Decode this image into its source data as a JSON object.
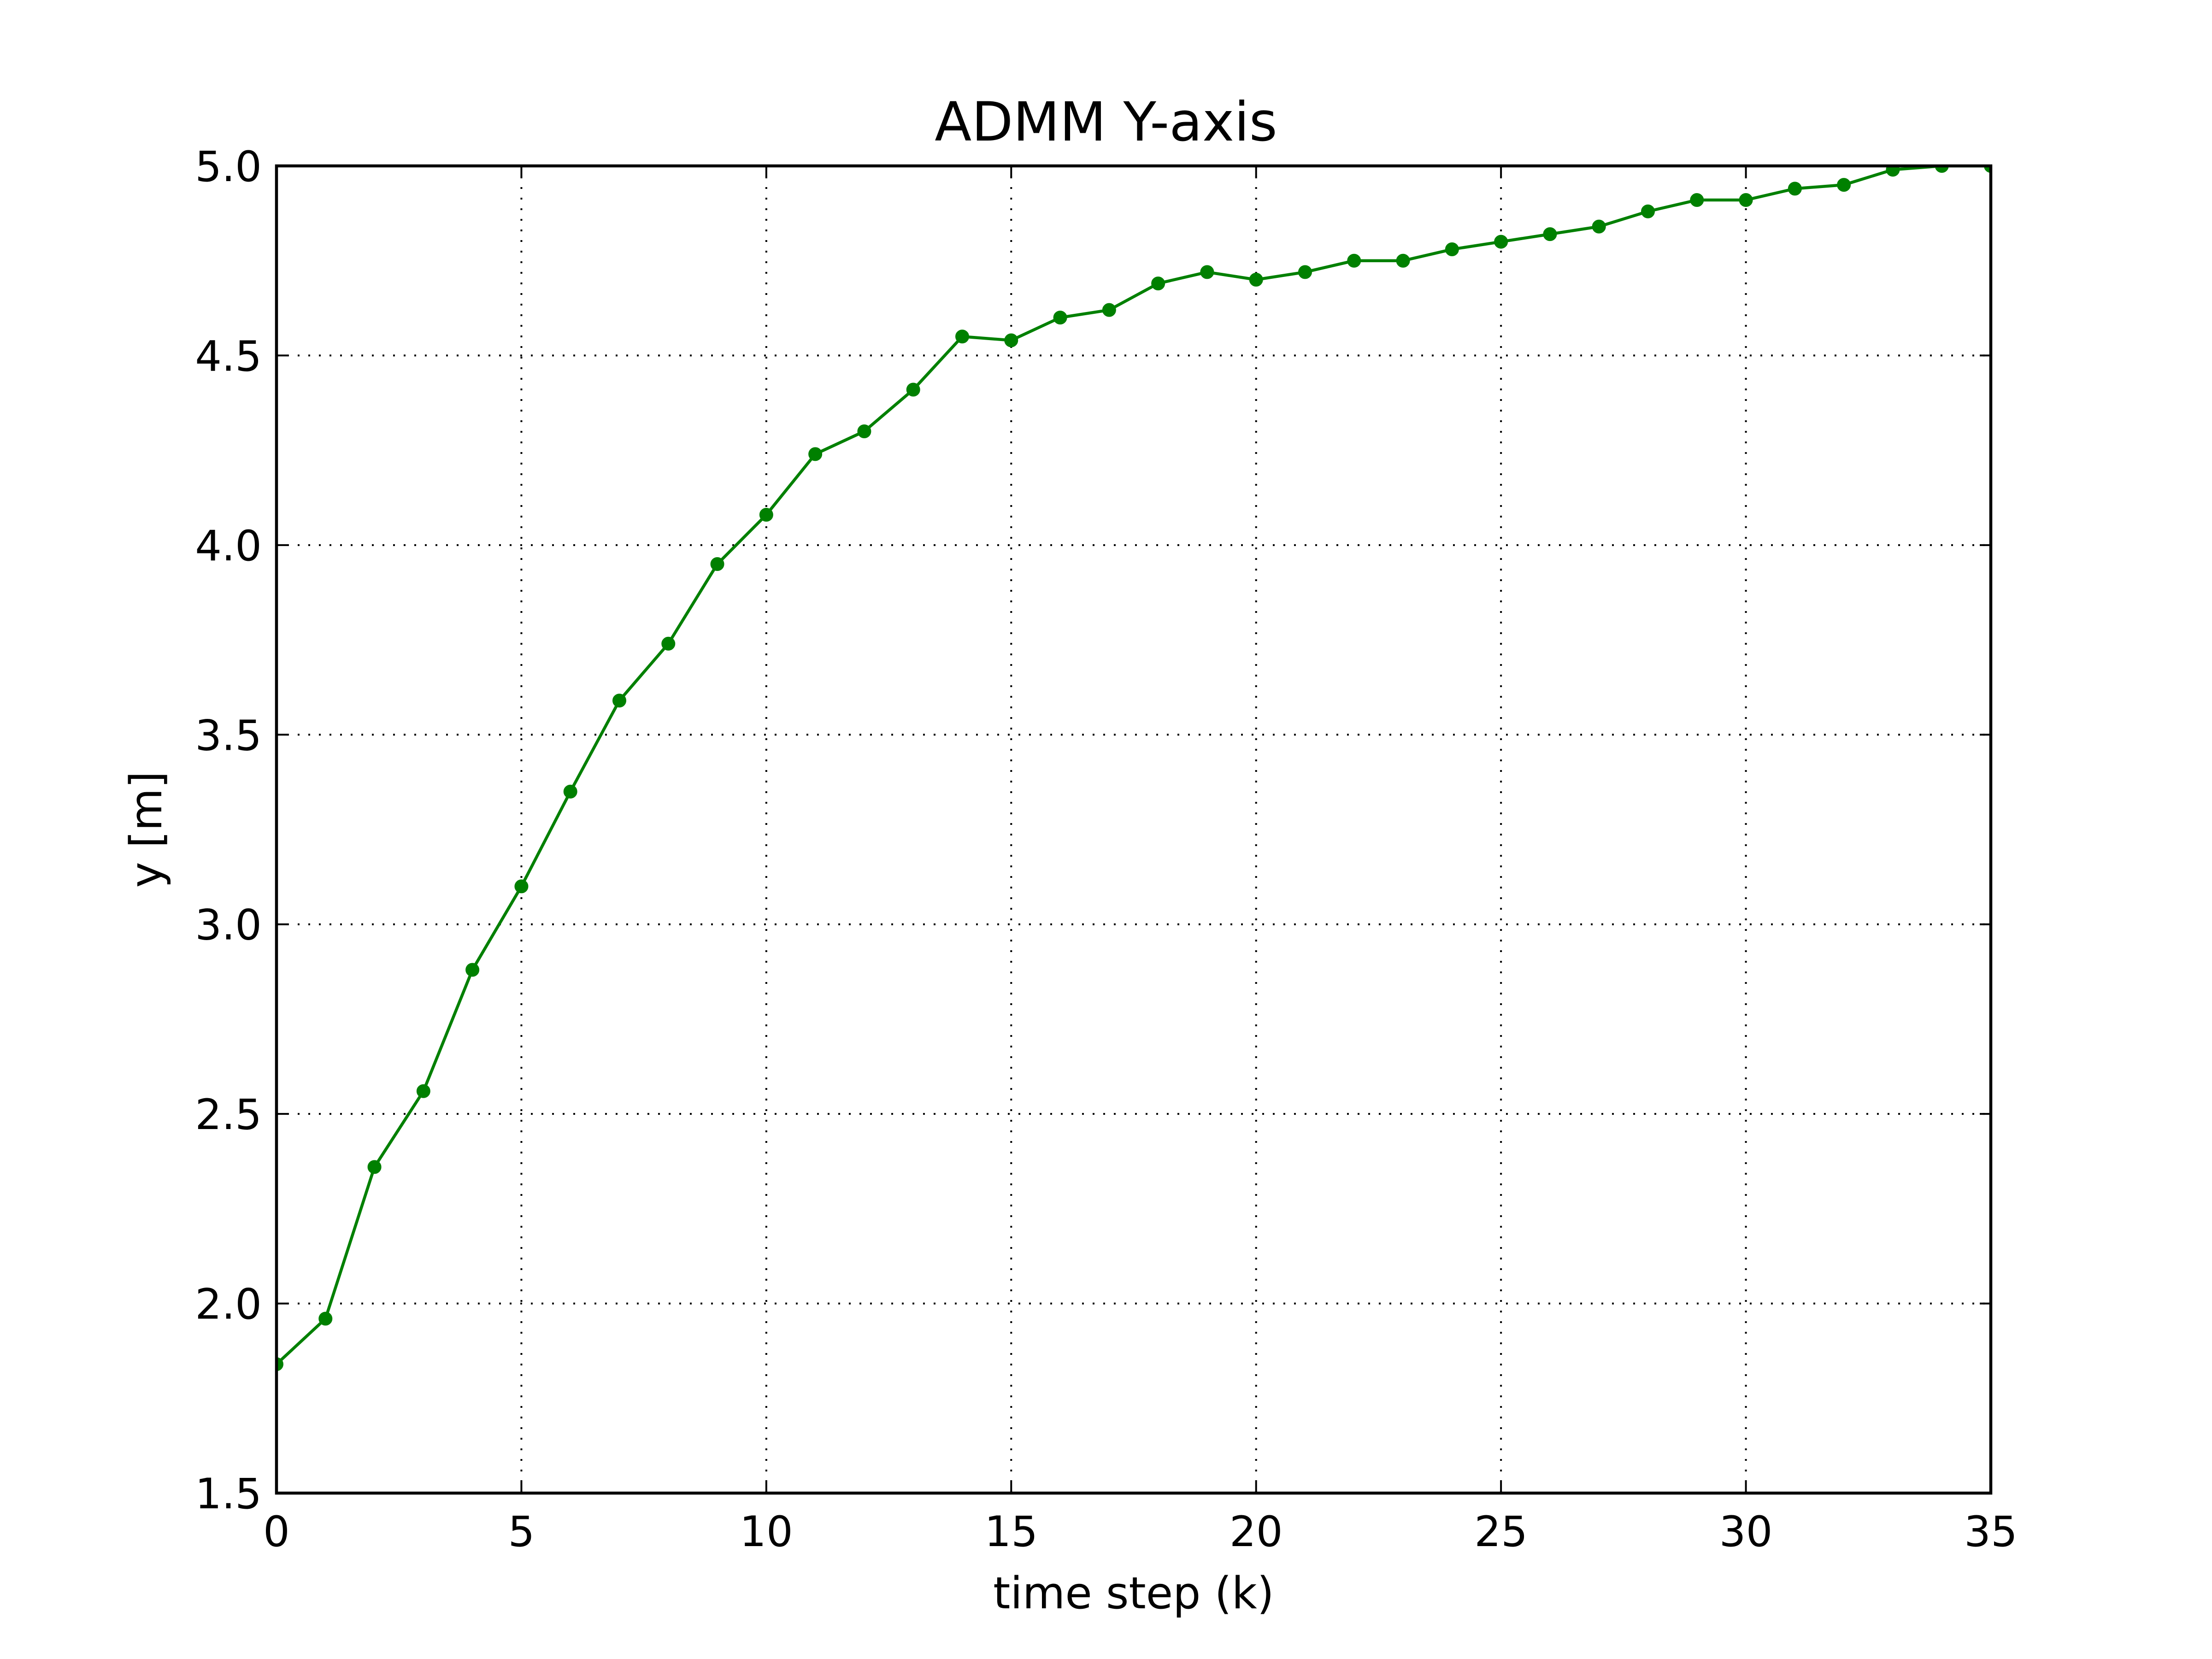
{
  "chart_data": {
    "type": "line",
    "title": "ADMM Y-axis",
    "xlabel": "time step (k)",
    "ylabel": "y [m]",
    "xlim": [
      0,
      35
    ],
    "ylim": [
      1.5,
      5.0
    ],
    "grid": true,
    "xticks": [
      0,
      5,
      10,
      15,
      20,
      25,
      30,
      35
    ],
    "xtick_labels": [
      "0",
      "5",
      "10",
      "15",
      "20",
      "25",
      "30",
      "35"
    ],
    "yticks": [
      1.5,
      2.0,
      2.5,
      3.0,
      3.5,
      4.0,
      4.5,
      5.0
    ],
    "ytick_labels": [
      "1.5",
      "2.0",
      "2.5",
      "3.0",
      "3.5",
      "4.0",
      "4.5",
      "5.0"
    ],
    "series": [
      {
        "color": "#008000",
        "marker": "circle",
        "x": [
          0,
          1,
          2,
          3,
          4,
          5,
          6,
          7,
          8,
          9,
          10,
          11,
          12,
          13,
          14,
          15,
          16,
          17,
          18,
          19,
          20,
          21,
          22,
          23,
          24,
          25,
          26,
          27,
          28,
          29,
          30,
          31,
          32,
          33,
          34,
          35
        ],
        "values": [
          1.84,
          1.96,
          2.36,
          2.56,
          2.88,
          3.1,
          3.35,
          3.59,
          3.74,
          3.95,
          4.08,
          4.24,
          4.3,
          4.41,
          4.55,
          4.54,
          4.6,
          4.62,
          4.69,
          4.72,
          4.7,
          4.72,
          4.75,
          4.75,
          4.78,
          4.8,
          4.82,
          4.84,
          4.88,
          4.91,
          4.91,
          4.94,
          4.95,
          4.99,
          5.0,
          5.0
        ]
      }
    ]
  }
}
